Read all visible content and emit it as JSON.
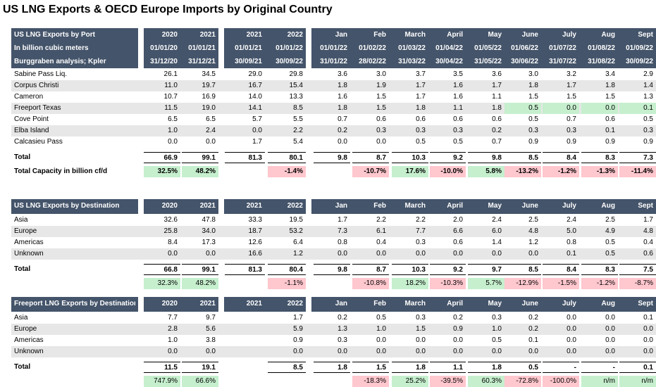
{
  "title": "US LNG Exports & OECD Europe Imports by Original Country",
  "colors": {
    "header_bg": "#44546a",
    "green_bg": "#c6efce",
    "red_bg": "#ffc7ce",
    "shade_bg": "#e7e7e7"
  },
  "months": [
    "Jan",
    "Feb",
    "March",
    "April",
    "May",
    "June",
    "July",
    "Aug",
    "Sept"
  ],
  "t1": {
    "header": {
      "lines": [
        "US LNG Exports by Port",
        "In billion cubic meters",
        "Burggraben analysis; Kpler"
      ],
      "years": [
        "2020",
        "2021",
        "2021",
        "2022"
      ],
      "from": [
        "01/01/20",
        "01/01/21",
        "01/01/21",
        "01/01/22",
        "01/01/22",
        "01/02/22",
        "01/03/22",
        "01/04/22",
        "01/05/22",
        "01/06/22",
        "01/07/22",
        "01/08/22",
        "01/09/22"
      ],
      "to": [
        "31/12/20",
        "31/12/21",
        "30/09/21",
        "30/09/22",
        "31/01/22",
        "28/02/22",
        "31/03/22",
        "30/04/22",
        "31/05/22",
        "30/06/22",
        "31/07/22",
        "31/08/22",
        "30/09/22"
      ]
    },
    "rows": [
      {
        "label": "Sabine Pass Liq.",
        "v": [
          "26.1",
          "34.5",
          "29.0",
          "29.8",
          "3.6",
          "3.0",
          "3.7",
          "3.5",
          "3.6",
          "3.0",
          "3.2",
          "3.4",
          "2.9"
        ]
      },
      {
        "label": "Corpus Christi",
        "v": [
          "11.0",
          "19.7",
          "16.7",
          "15.4",
          "1.8",
          "1.9",
          "1.7",
          "1.6",
          "1.7",
          "1.8",
          "1.7",
          "1.8",
          "1.4"
        ]
      },
      {
        "label": "Cameron",
        "v": [
          "10.7",
          "16.9",
          "14.0",
          "13.3",
          "1.6",
          "1.5",
          "1.7",
          "1.6",
          "1.1",
          "1.5",
          "1.5",
          "1.5",
          "1.3"
        ]
      },
      {
        "label": "Freeport Texas",
        "v": [
          "11.5",
          "19.0",
          "14.1",
          "8.5",
          "1.8",
          "1.5",
          "1.8",
          "1.1",
          "1.8",
          "0.5",
          "0.0",
          "0.0",
          "0.1"
        ]
      },
      {
        "label": "Cove Point",
        "v": [
          "6.5",
          "6.5",
          "5.7",
          "5.5",
          "0.7",
          "0.6",
          "0.6",
          "0.6",
          "0.6",
          "0.5",
          "0.7",
          "0.6",
          "0.5"
        ]
      },
      {
        "label": "Elba Island",
        "v": [
          "1.0",
          "2.4",
          "0.0",
          "2.2",
          "0.2",
          "0.3",
          "0.3",
          "0.3",
          "0.2",
          "0.3",
          "0.3",
          "0.1",
          "0.3"
        ]
      },
      {
        "label": "Calcasieu Pass",
        "v": [
          "0.0",
          "0.0",
          "1.7",
          "5.4",
          "0.0",
          "0.0",
          "0.5",
          "0.5",
          "0.7",
          "0.9",
          "0.9",
          "0.9",
          "0.9"
        ]
      }
    ],
    "total": {
      "label": "Total",
      "v": [
        "66.9",
        "99.1",
        "81.3",
        "80.1",
        "9.8",
        "8.7",
        "10.3",
        "9.2",
        "9.8",
        "8.5",
        "8.4",
        "8.3",
        "7.3"
      ]
    },
    "pct": {
      "label": "Total Capacity in billion cf/d",
      "v": [
        "32.5%",
        "48.2%",
        "",
        "-1.4%",
        "",
        "-10.7%",
        "17.6%",
        "-10.0%",
        "5.8%",
        "-13.2%",
        "-1.2%",
        "-1.3%",
        "-11.4%"
      ]
    }
  },
  "t2": {
    "header": {
      "title": "US LNG Exports by Destination",
      "years": [
        "2020",
        "2021",
        "2021",
        "2022"
      ]
    },
    "rows": [
      {
        "label": "Asia",
        "v": [
          "32.6",
          "47.8",
          "33.3",
          "19.5",
          "1.7",
          "2.2",
          "2.2",
          "2.0",
          "2.4",
          "2.5",
          "2.4",
          "2.5",
          "1.7"
        ]
      },
      {
        "label": "Europe",
        "v": [
          "25.8",
          "34.0",
          "18.7",
          "53.2",
          "7.3",
          "6.1",
          "7.7",
          "6.6",
          "6.0",
          "4.8",
          "5.0",
          "4.9",
          "4.8"
        ]
      },
      {
        "label": "Americas",
        "v": [
          "8.4",
          "17.3",
          "12.6",
          "6.4",
          "0.8",
          "0.4",
          "0.3",
          "0.6",
          "1.4",
          "1.2",
          "0.8",
          "0.5",
          "0.4"
        ]
      },
      {
        "label": "Unknown",
        "v": [
          "0.0",
          "0.0",
          "16.6",
          "1.2",
          "0.0",
          "0.0",
          "0.0",
          "0.0",
          "0.0",
          "0.0",
          "0.1",
          "0.5",
          "0.6"
        ]
      }
    ],
    "total": {
      "label": "Total",
      "v": [
        "66.8",
        "99.1",
        "81.3",
        "80.4",
        "9.8",
        "8.7",
        "10.3",
        "9.2",
        "9.7",
        "8.5",
        "8.4",
        "8.3",
        "7.5"
      ]
    },
    "pct": {
      "label": "",
      "v": [
        "32.3%",
        "48.2%",
        "",
        "-1.1%",
        "",
        "-10.8%",
        "18.2%",
        "-10.3%",
        "5.7%",
        "-12.9%",
        "-1.5%",
        "-1.2%",
        "-8.7%"
      ]
    }
  },
  "t3": {
    "header": {
      "title": "Freeport LNG Exports by Destination",
      "years": [
        "2020",
        "2021",
        "2021",
        "2022"
      ]
    },
    "rows": [
      {
        "label": "Asia",
        "v": [
          "7.7",
          "9.7",
          "",
          "1.7",
          "0.2",
          "0.5",
          "0.3",
          "0.2",
          "0.3",
          "0.2",
          "0.0",
          "0.0",
          "0.1"
        ]
      },
      {
        "label": "Europe",
        "v": [
          "2.8",
          "5.6",
          "",
          "5.9",
          "1.3",
          "1.0",
          "1.5",
          "0.9",
          "1.0",
          "0.2",
          "0.0",
          "0.0",
          "0.0"
        ]
      },
      {
        "label": "Americas",
        "v": [
          "1.0",
          "3.8",
          "",
          "0.9",
          "0.3",
          "0.0",
          "0.0",
          "0.0",
          "0.5",
          "0.1",
          "0.0",
          "0.0",
          "0.0"
        ]
      },
      {
        "label": "Unknown",
        "v": [
          "0.0",
          "0.0",
          "",
          "0.0",
          "0.0",
          "0.0",
          "0.0",
          "0.0",
          "0.0",
          "0.0",
          "0.0",
          "0.0",
          "0.0"
        ]
      }
    ],
    "total": {
      "label": "Total",
      "v": [
        "11.5",
        "19.1",
        "",
        "8.5",
        "1.8",
        "1.5",
        "1.8",
        "1.1",
        "1.8",
        "0.5",
        "-",
        "-",
        "0.1"
      ]
    },
    "pct": {
      "label": "",
      "v": [
        "747.9%",
        "66.6%",
        "",
        "",
        "",
        "-18.3%",
        "25.2%",
        "-39.5%",
        "60.3%",
        "-72.8%",
        "-100.0%",
        "n/m",
        "n/m"
      ]
    }
  }
}
